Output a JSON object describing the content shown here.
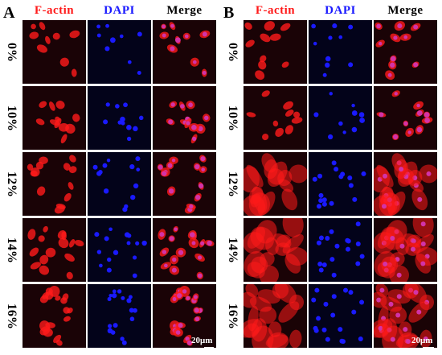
{
  "panels": [
    {
      "letter": "A",
      "columns": [
        "F-actin",
        "DAPI",
        "Merge"
      ],
      "rows": [
        "0%",
        "10%",
        "12%",
        "14%",
        "16%"
      ],
      "scale_label": "20μm"
    },
    {
      "letter": "B",
      "columns": [
        "F-actin",
        "DAPI",
        "Merge"
      ],
      "rows": [
        "0%",
        "10%",
        "12%",
        "14%",
        "16%"
      ],
      "scale_label": "20μm"
    }
  ],
  "colors": {
    "f_actin": "#ff1a1a",
    "dapi": "#1a1aff",
    "merge_overlap": "#d233a8",
    "background": "#000000"
  }
}
